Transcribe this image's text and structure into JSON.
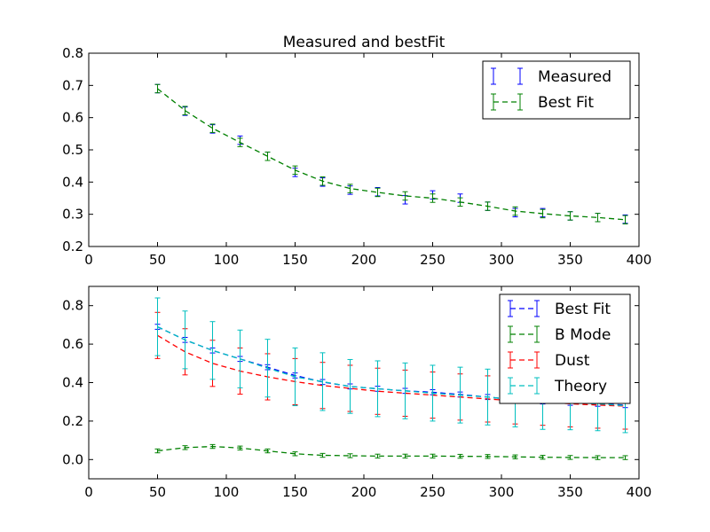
{
  "chart_data": [
    {
      "type": "line",
      "title": "Measured and bestFit",
      "xlim": [
        0,
        400
      ],
      "ylim": [
        0.2,
        0.8
      ],
      "xticks": [
        "0",
        "50",
        "100",
        "150",
        "200",
        "250",
        "300",
        "350",
        "400"
      ],
      "yticks": [
        "0.2",
        "0.3",
        "0.4",
        "0.5",
        "0.6",
        "0.7",
        "0.8"
      ],
      "legend_position": "top-right",
      "x": [
        50,
        70,
        90,
        110,
        130,
        150,
        170,
        190,
        210,
        230,
        250,
        270,
        290,
        310,
        330,
        350,
        370,
        390
      ],
      "series": [
        {
          "name": "Measured",
          "color": "#0000ff",
          "style": "errorbar-only",
          "values": [
            0.69,
            0.62,
            0.565,
            0.53,
            0.48,
            0.43,
            0.4,
            0.375,
            0.37,
            0.345,
            0.36,
            0.35,
            0.325,
            0.305,
            0.305,
            0.295,
            0.29,
            0.285
          ],
          "errors": [
            0.013,
            0.013,
            0.013,
            0.013,
            0.013,
            0.013,
            0.013,
            0.013,
            0.013,
            0.013,
            0.013,
            0.013,
            0.013,
            0.013,
            0.013,
            0.013,
            0.013,
            0.013
          ]
        },
        {
          "name": "Best Fit",
          "color": "#008000",
          "style": "dashed",
          "values": [
            0.69,
            0.622,
            0.567,
            0.523,
            0.48,
            0.437,
            0.403,
            0.38,
            0.368,
            0.357,
            0.35,
            0.338,
            0.325,
            0.31,
            0.302,
            0.295,
            0.29,
            0.283
          ],
          "errors": [
            0.013,
            0.013,
            0.013,
            0.013,
            0.013,
            0.013,
            0.013,
            0.013,
            0.013,
            0.013,
            0.013,
            0.013,
            0.013,
            0.013,
            0.013,
            0.013,
            0.013,
            0.013
          ]
        }
      ]
    },
    {
      "type": "line",
      "title": "",
      "xlim": [
        0,
        400
      ],
      "ylim": [
        -0.1,
        0.9
      ],
      "xticks": [
        "0",
        "50",
        "100",
        "150",
        "200",
        "250",
        "300",
        "350",
        "400"
      ],
      "yticks": [
        "0.0",
        "0.2",
        "0.4",
        "0.6",
        "0.8"
      ],
      "ytick_values": [
        0.0,
        0.2,
        0.4,
        0.6,
        0.8
      ],
      "legend_position": "top-right",
      "x": [
        50,
        70,
        90,
        110,
        130,
        150,
        170,
        190,
        210,
        230,
        250,
        270,
        290,
        310,
        330,
        350,
        370,
        390
      ],
      "series": [
        {
          "name": "Best Fit",
          "color": "#0000ff",
          "style": "dashed",
          "values": [
            0.69,
            0.622,
            0.567,
            0.523,
            0.48,
            0.437,
            0.403,
            0.38,
            0.368,
            0.357,
            0.35,
            0.338,
            0.325,
            0.31,
            0.302,
            0.295,
            0.29,
            0.283
          ],
          "errors": [
            0.013,
            0.013,
            0.013,
            0.013,
            0.013,
            0.013,
            0.013,
            0.013,
            0.013,
            0.013,
            0.013,
            0.013,
            0.013,
            0.013,
            0.013,
            0.013,
            0.013,
            0.013
          ]
        },
        {
          "name": "B Mode",
          "color": "#008000",
          "style": "dashed",
          "values": [
            0.045,
            0.062,
            0.068,
            0.06,
            0.045,
            0.03,
            0.022,
            0.02,
            0.018,
            0.018,
            0.018,
            0.017,
            0.016,
            0.014,
            0.012,
            0.011,
            0.01,
            0.01
          ],
          "errors": [
            0.01,
            0.01,
            0.01,
            0.01,
            0.01,
            0.01,
            0.01,
            0.01,
            0.01,
            0.01,
            0.01,
            0.01,
            0.01,
            0.01,
            0.01,
            0.01,
            0.01,
            0.01
          ]
        },
        {
          "name": "Dust",
          "color": "#ff0000",
          "style": "dashed",
          "values": [
            0.645,
            0.56,
            0.5,
            0.46,
            0.43,
            0.405,
            0.385,
            0.37,
            0.355,
            0.345,
            0.335,
            0.325,
            0.315,
            0.305,
            0.298,
            0.29,
            0.283,
            0.278
          ],
          "errors": [
            0.12,
            0.12,
            0.12,
            0.12,
            0.12,
            0.12,
            0.12,
            0.12,
            0.12,
            0.12,
            0.12,
            0.12,
            0.12,
            0.12,
            0.12,
            0.12,
            0.12,
            0.12
          ]
        },
        {
          "name": "Theory",
          "color": "#00bfbf",
          "style": "dashed",
          "values": [
            0.69,
            0.622,
            0.567,
            0.523,
            0.475,
            0.43,
            0.405,
            0.38,
            0.368,
            0.357,
            0.345,
            0.335,
            0.325,
            0.31,
            0.302,
            0.295,
            0.29,
            0.28
          ],
          "errors": [
            0.15,
            0.15,
            0.15,
            0.15,
            0.15,
            0.15,
            0.15,
            0.14,
            0.145,
            0.145,
            0.145,
            0.145,
            0.145,
            0.14,
            0.145,
            0.14,
            0.14,
            0.14
          ]
        }
      ]
    }
  ]
}
